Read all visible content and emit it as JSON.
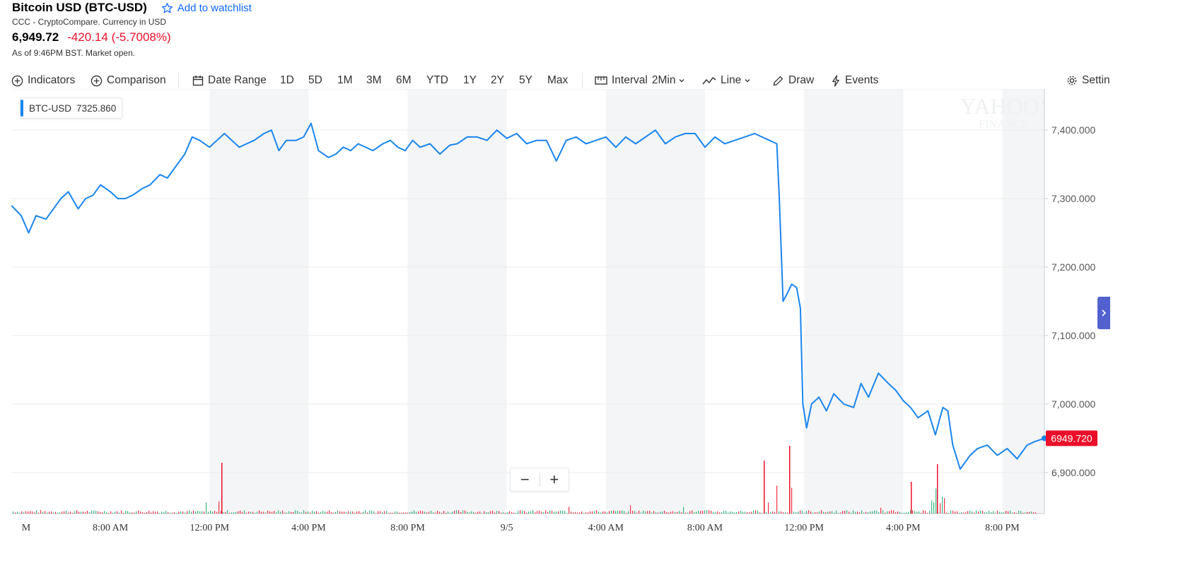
{
  "header": {
    "title": "Bitcoin USD (BTC-USD)",
    "watchlist_label": "Add to watchlist",
    "subtitle": "CCC - CryptoCompare. Currency in USD",
    "price": "6,949.72",
    "change": "-420.14 (-5.7008%)",
    "as_of": "As of 9:46PM BST. Market open."
  },
  "toolbar": {
    "indicators": "Indicators",
    "comparison": "Comparison",
    "date_range": "Date Range",
    "ranges": [
      "1D",
      "5D",
      "1M",
      "3M",
      "6M",
      "YTD",
      "1Y",
      "2Y",
      "5Y",
      "Max"
    ],
    "interval_label": "Interval",
    "interval_value": "2Min",
    "chart_type": "Line",
    "draw": "Draw",
    "events": "Events",
    "settings": "Settin"
  },
  "legend": {
    "symbol": "BTC-USD",
    "value": "7325.860"
  },
  "watermark": {
    "line1": "YAHOO!",
    "line2": "FINANCE"
  },
  "colors": {
    "line": "#1a85f0",
    "down": "#eb0f29",
    "up": "#18a86b",
    "accent": "#0f69ff"
  },
  "zoom": {
    "minus": "−",
    "plus": "+"
  },
  "chart_data": {
    "type": "line",
    "title": "",
    "xlabel": "",
    "ylabel": "",
    "ylim": [
      6840,
      7460
    ],
    "y_ticks": [
      "7,400.000",
      "7,300.000",
      "7,200.000",
      "7,100.000",
      "7,000.000",
      "6,900.000"
    ],
    "y_tick_values": [
      7400,
      7300,
      7200,
      7100,
      7000,
      6900
    ],
    "x_ticks": [
      "M",
      "8:00 AM",
      "12:00 PM",
      "4:00 PM",
      "8:00 PM",
      "9/5",
      "4:00 AM",
      "8:00 AM",
      "12:00 PM",
      "4:00 PM",
      "8:00 PM"
    ],
    "x_tick_hours": [
      4.6,
      8,
      12,
      16,
      20,
      24,
      28,
      32,
      36,
      40,
      44
    ],
    "x_range_hours": [
      4,
      45.7
    ],
    "shaded_bands_hours": [
      [
        12,
        16
      ],
      [
        20,
        24
      ],
      [
        28,
        32
      ],
      [
        36,
        40
      ],
      [
        44,
        45.7
      ]
    ],
    "current_value": "6949.720",
    "series": [
      {
        "x_hours": [
          4.0,
          4.4,
          4.7,
          5.0,
          5.4,
          5.7,
          6.0,
          6.3,
          6.7,
          7.0,
          7.3,
          7.6,
          8.0,
          8.3,
          8.6,
          8.9,
          9.3,
          9.6,
          10.0,
          10.3,
          10.6,
          11.0,
          11.3,
          11.6,
          12.0,
          12.3,
          12.6,
          12.9,
          13.2,
          13.5,
          13.8,
          14.2,
          14.5,
          14.8,
          15.1,
          15.5,
          15.8,
          16.1,
          16.4,
          16.8,
          17.1,
          17.4,
          17.7,
          18.0,
          18.3,
          18.6,
          19.0,
          19.3,
          19.6,
          19.9,
          20.2,
          20.5,
          20.9,
          21.3,
          21.7,
          22.0,
          22.4,
          22.8,
          23.2,
          23.6,
          24.0,
          24.4,
          24.8,
          25.2,
          25.6,
          26.0,
          26.4,
          26.8,
          27.2,
          27.6,
          28.0,
          28.4,
          28.8,
          29.2,
          29.6,
          30.0,
          30.4,
          30.8,
          31.2,
          31.6,
          32.0,
          32.4,
          32.8,
          33.2,
          33.6,
          34.0,
          34.3,
          34.6,
          34.9,
          35.0,
          35.15,
          35.3,
          35.5,
          35.7,
          35.85,
          35.95,
          36.1,
          36.3,
          36.6,
          36.9,
          37.2,
          37.6,
          38.0,
          38.3,
          38.6,
          39.0,
          39.4,
          39.7,
          40.0,
          40.3,
          40.6,
          41.0,
          41.3,
          41.6,
          41.8,
          42.0,
          42.3,
          42.7,
          43.0,
          43.4,
          43.8,
          44.2,
          44.6,
          45.0,
          45.3,
          45.7
        ],
        "values": [
          7290,
          7275,
          7250,
          7275,
          7270,
          7285,
          7300,
          7310,
          7285,
          7300,
          7305,
          7320,
          7310,
          7300,
          7300,
          7305,
          7315,
          7320,
          7335,
          7330,
          7345,
          7365,
          7390,
          7385,
          7375,
          7385,
          7395,
          7385,
          7375,
          7380,
          7385,
          7395,
          7400,
          7370,
          7385,
          7385,
          7390,
          7410,
          7370,
          7360,
          7365,
          7375,
          7370,
          7380,
          7375,
          7370,
          7380,
          7385,
          7375,
          7370,
          7385,
          7375,
          7380,
          7365,
          7378,
          7380,
          7390,
          7390,
          7385,
          7400,
          7388,
          7395,
          7380,
          7385,
          7385,
          7355,
          7385,
          7390,
          7380,
          7385,
          7390,
          7375,
          7390,
          7380,
          7390,
          7400,
          7380,
          7390,
          7395,
          7395,
          7375,
          7390,
          7380,
          7385,
          7390,
          7395,
          7390,
          7385,
          7380,
          7300,
          7150,
          7160,
          7175,
          7170,
          7140,
          7000,
          6965,
          7000,
          7010,
          6990,
          7015,
          7000,
          6995,
          7030,
          7010,
          7045,
          7030,
          7020,
          7005,
          6995,
          6980,
          6990,
          6955,
          6995,
          6990,
          6940,
          6905,
          6925,
          6935,
          6940,
          6925,
          6935,
          6920,
          6940,
          6945,
          6950
        ]
      }
    ]
  }
}
